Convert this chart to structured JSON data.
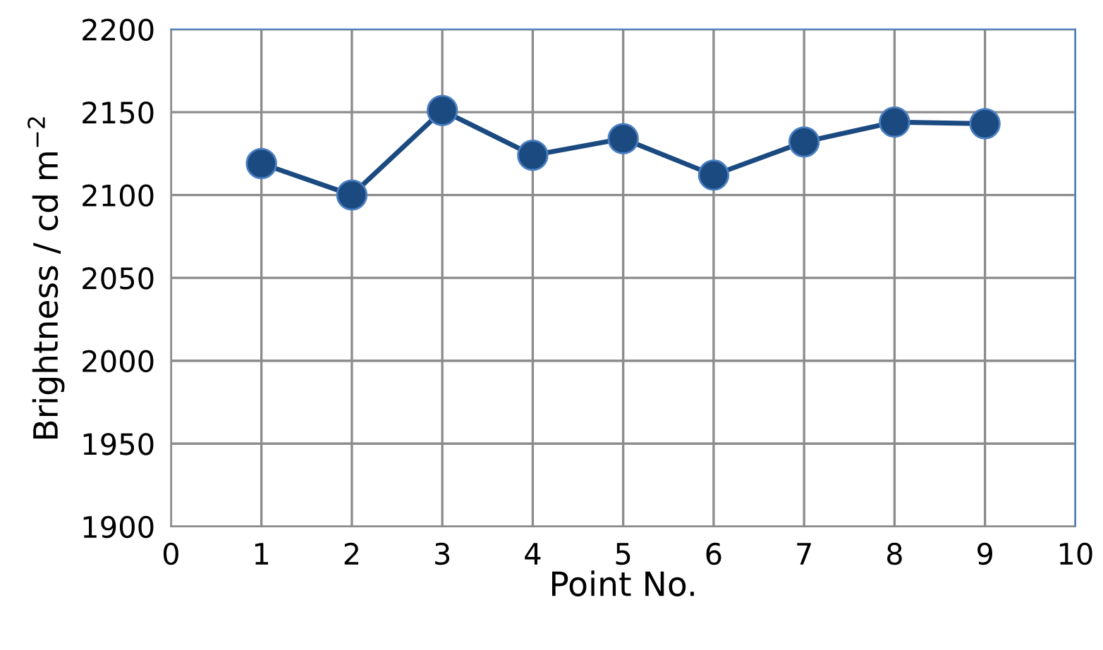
{
  "chart_data": {
    "type": "line",
    "xlabel": "Point No.",
    "ylabel": "Brightness / cd m$^{−2}$",
    "x": [
      1,
      2,
      3,
      4,
      5,
      6,
      7,
      8,
      9
    ],
    "series": [
      {
        "color": "#1a4a80",
        "values": [
          2119,
          2100,
          2151,
          2124,
          2134,
          2112,
          2132,
          2144,
          2143
        ]
      }
    ],
    "xlim": [
      0,
      10
    ],
    "xticks": [
      0,
      1,
      2,
      3,
      4,
      5,
      6,
      7,
      8,
      9,
      10
    ],
    "ylim": [
      1900,
      2200
    ],
    "yticks": [
      1900,
      1950,
      2000,
      2050,
      2100,
      2150,
      2200
    ],
    "grid": true,
    "marker": "circle",
    "line_style": "solid"
  }
}
